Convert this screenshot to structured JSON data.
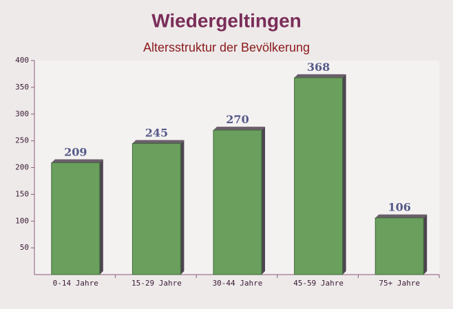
{
  "chart_data": {
    "type": "bar",
    "title": "Wiedergeltingen",
    "subtitle": "Altersstruktur der Bevölkerung",
    "categories": [
      "0-14 Jahre",
      "15-29 Jahre",
      "30-44 Jahre",
      "45-59 Jahre",
      "75+ Jahre"
    ],
    "values": [
      209,
      245,
      270,
      368,
      106
    ],
    "color": "#6a9f5e",
    "ylim": [
      0,
      400
    ],
    "yticks": [
      50,
      100,
      150,
      200,
      250,
      300,
      350,
      400
    ]
  }
}
